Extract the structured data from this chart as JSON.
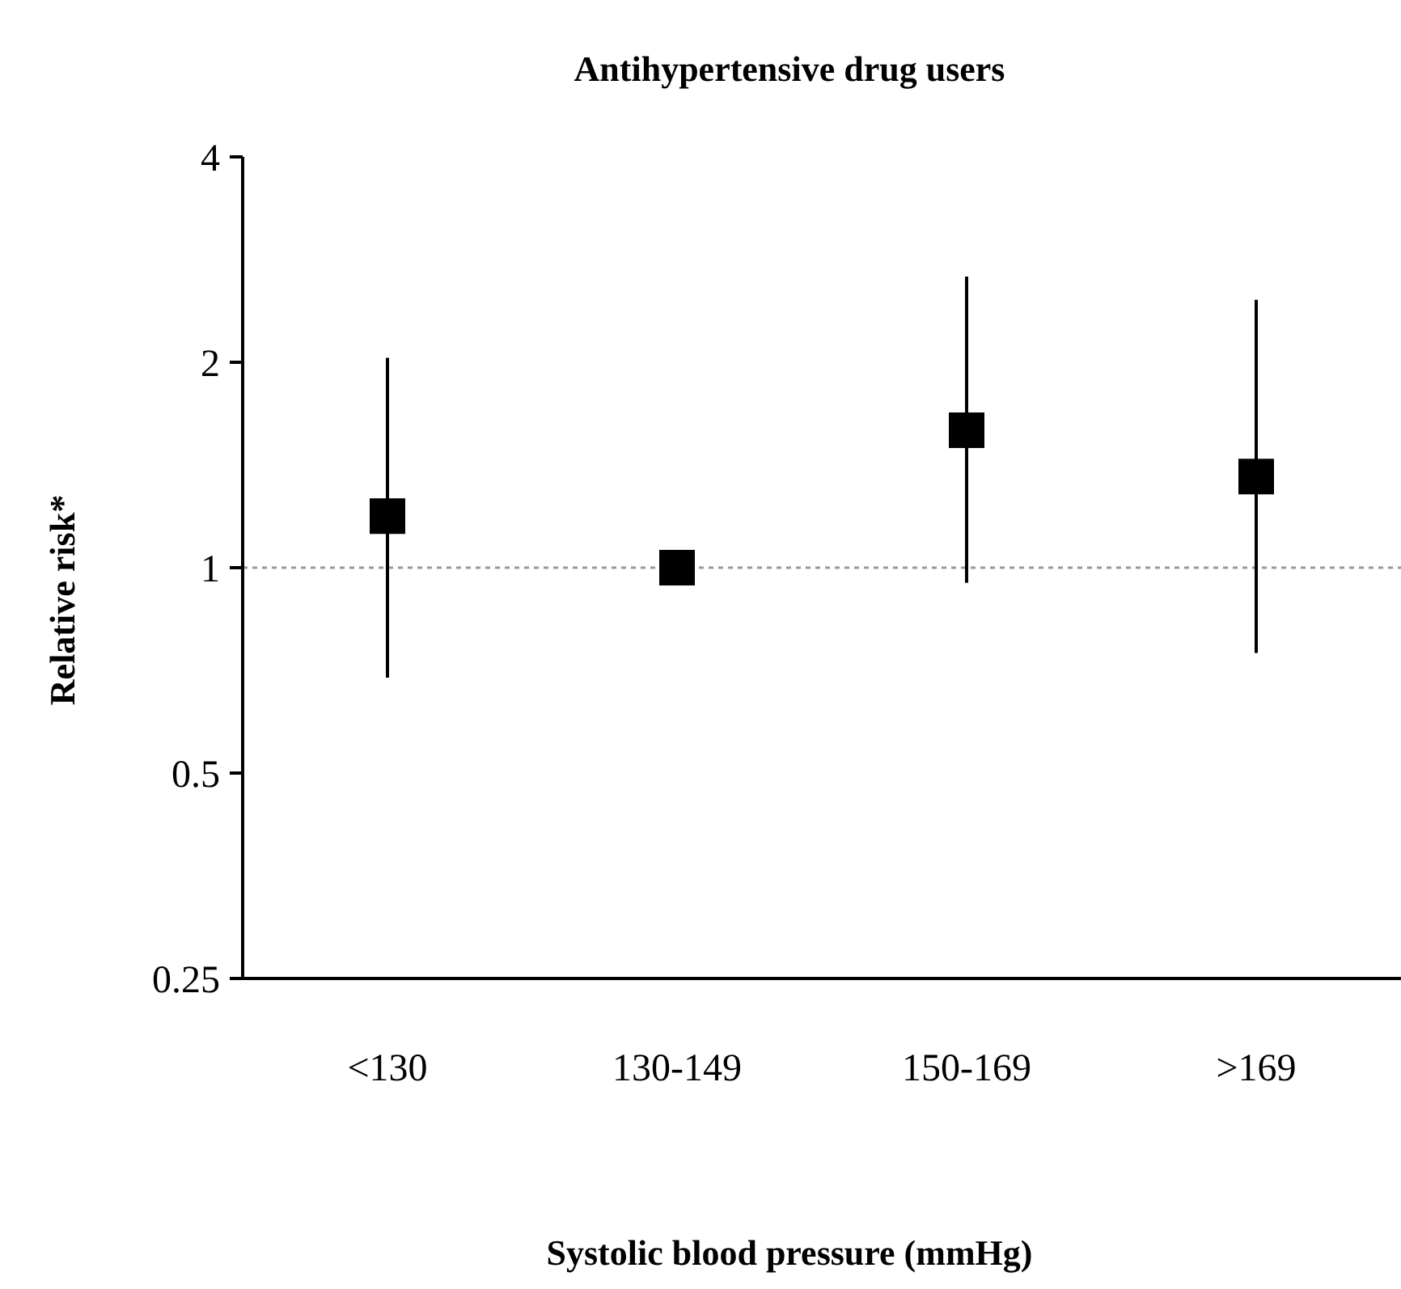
{
  "chart_data": {
    "type": "scatter",
    "title": "Antihypertensive drug users",
    "xlabel": "Systolic blood pressure (mmHg)",
    "ylabel": "Relative risk*",
    "categories": [
      "<130",
      "130-149",
      "150-169",
      ">169"
    ],
    "values": [
      1.19,
      1.0,
      1.59,
      1.36
    ],
    "errors": [
      [
        0.69,
        2.03
      ],
      null,
      [
        0.95,
        2.67
      ],
      [
        0.75,
        2.47
      ]
    ],
    "color": "#000000",
    "marker": "square",
    "log": true,
    "ylim": [
      0.25,
      4
    ],
    "yticks": [
      0.25,
      0.5,
      1,
      2,
      4
    ],
    "ref_lines": [
      {
        "axis": "y",
        "value": 1,
        "color": "#999999",
        "line_style": "dotted"
      }
    ],
    "grid": false
  }
}
